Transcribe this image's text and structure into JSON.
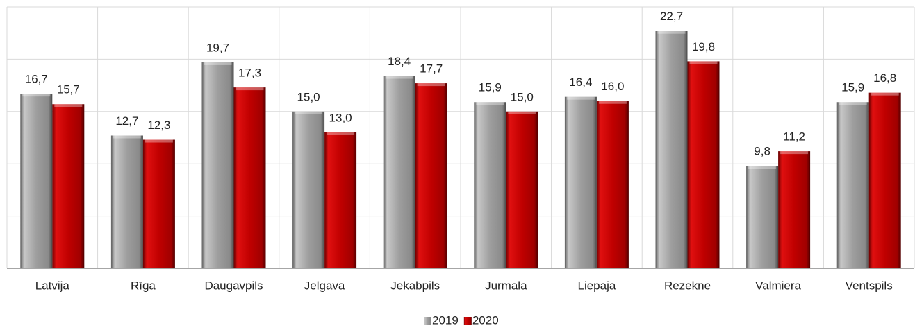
{
  "chart_data": {
    "type": "bar",
    "categories": [
      "Latvija",
      "Rīga",
      "Daugavpils",
      "Jelgava",
      "Jēkabpils",
      "Jūrmala",
      "Liepāja",
      "Rēzekne",
      "Valmiera",
      "Ventspils"
    ],
    "series": [
      {
        "name": "2019",
        "color": "#9e9e9e",
        "values": [
          16.7,
          12.7,
          19.7,
          15.0,
          18.4,
          15.9,
          16.4,
          22.7,
          9.8,
          15.9
        ],
        "value_labels": [
          "16,7",
          "12,7",
          "19,7",
          "15,0",
          "18,4",
          "15,9",
          "16,4",
          "22,7",
          "9,8",
          "15,9"
        ]
      },
      {
        "name": "2020",
        "color": "#c00000",
        "values": [
          15.7,
          12.3,
          17.3,
          13.0,
          17.7,
          15.0,
          16.0,
          19.8,
          11.2,
          16.8
        ],
        "value_labels": [
          "15,7",
          "12,3",
          "17,3",
          "13,0",
          "17,7",
          "15,0",
          "16,0",
          "19,8",
          "11,2",
          "16,8"
        ]
      }
    ],
    "ylim": [
      0,
      25
    ],
    "yticks": [
      0,
      5,
      10,
      15,
      20,
      25
    ],
    "grid": true,
    "legend": "bottom"
  }
}
